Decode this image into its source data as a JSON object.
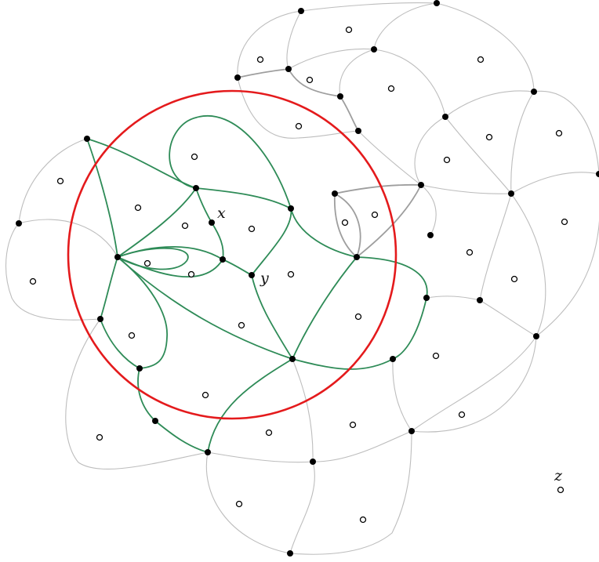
{
  "labels": {
    "x": "x",
    "y": "y",
    "z": "z"
  },
  "colors": {
    "edge_light": "#bdbdbd",
    "edge_dark": "#9e9e9e",
    "edge_green": "#2e8b57",
    "circle": "#e41a1c",
    "vertex": "#000000",
    "face_marker": "#000000"
  }
}
